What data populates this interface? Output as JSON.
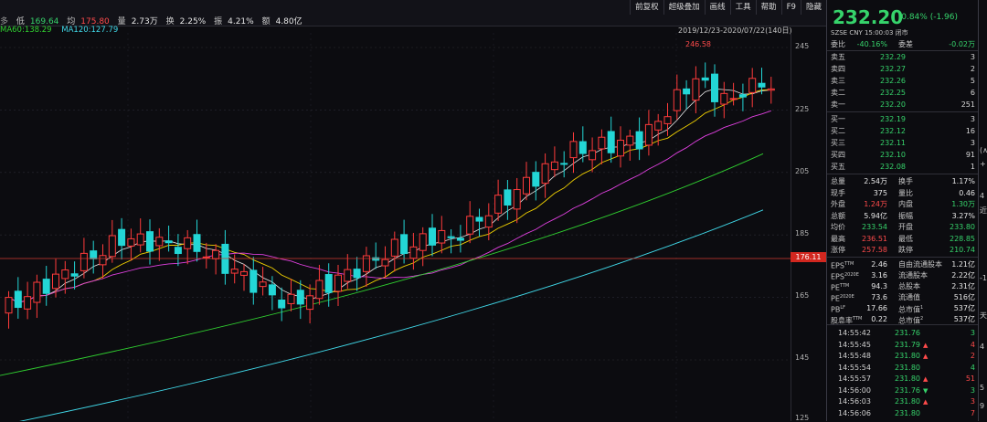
{
  "info": {
    "prev_fragment": "多",
    "low_label": "低",
    "low_value": "169.64",
    "avg_label": "均",
    "avg_value": "175.80",
    "volume_label": "量",
    "volume_value": "2.73万",
    "turnover_label": "换",
    "turnover_value": "2.25%",
    "amplitude_label": "振",
    "amplitude_value": "4.21%",
    "amount_label": "额",
    "amount_value": "4.80亿"
  },
  "ma": {
    "ma60": "MA60:138.29",
    "ma120": "MA120:127.79"
  },
  "toolbar": [
    "前复权",
    "超级叠加",
    "画线",
    "工具",
    "帮助",
    "F9",
    "隐藏"
  ],
  "chart_range": "2019/12/23-2020/07/22(140日)",
  "chart_data": {
    "type": "candlestick",
    "y_axis_ticks": [
      "245",
      "225",
      "205",
      "185",
      "165",
      "145",
      "125"
    ],
    "current_price_tag": "176.11",
    "high_marker": "246.58",
    "colors": {
      "up": "#ff3b3b",
      "down": "#23d6d6",
      "ma5": "#e8e8e8",
      "ma10": "#f0d000",
      "ma20": "#e040e0",
      "ma60": "#30d030",
      "ma120": "#40d8e8"
    }
  },
  "quote": {
    "price": "232.20",
    "change": "-0.84% (-1.96)",
    "ratio_label": "委比",
    "ratio_value": "-40.16%",
    "diff_label": "委差",
    "diff_value": "-0.02万",
    "asks": [
      {
        "label": "卖五",
        "price": "232.29",
        "vol": "3"
      },
      {
        "label": "卖四",
        "price": "232.27",
        "vol": "2"
      },
      {
        "label": "卖三",
        "price": "232.26",
        "vol": "5"
      },
      {
        "label": "卖二",
        "price": "232.25",
        "vol": "6"
      },
      {
        "label": "卖一",
        "price": "232.20",
        "vol": "251"
      }
    ],
    "bids": [
      {
        "label": "买一",
        "price": "232.19",
        "vol": "3"
      },
      {
        "label": "买二",
        "price": "232.12",
        "vol": "16"
      },
      {
        "label": "买三",
        "price": "232.11",
        "vol": "3"
      },
      {
        "label": "买四",
        "price": "232.10",
        "vol": "91"
      },
      {
        "label": "买五",
        "price": "232.08",
        "vol": "1"
      }
    ],
    "stats": [
      {
        "k1": "总量",
        "v1": "2.54万",
        "k2": "换手",
        "v2": "1.17%",
        "c1": "white",
        "c2": "white"
      },
      {
        "k1": "现手",
        "v1": "375",
        "k2": "量比",
        "v2": "0.46",
        "c1": "white",
        "c2": "white"
      },
      {
        "k1": "外盘",
        "v1": "1.24万",
        "k2": "内盘",
        "v2": "1.30万",
        "c1": "red",
        "c2": "green"
      },
      {
        "k1": "总额",
        "v1": "5.94亿",
        "k2": "振幅",
        "v2": "3.27%",
        "c1": "white",
        "c2": "white"
      },
      {
        "k1": "均价",
        "v1": "233.54",
        "k2": "开盘",
        "v2": "233.80",
        "c1": "green",
        "c2": "green"
      },
      {
        "k1": "最高",
        "v1": "236.51",
        "k2": "最低",
        "v2": "228.85",
        "c1": "red",
        "c2": "green"
      },
      {
        "k1": "涨停",
        "v1": "257.58",
        "k2": "跌停",
        "v2": "210.74",
        "c1": "red",
        "c2": "green"
      }
    ],
    "fundamentals": [
      {
        "k1": "EPS",
        "s1": "TTM",
        "v1": "2.46",
        "k2": "自由流通股本",
        "v2": "1.21亿"
      },
      {
        "k1": "EPS",
        "s1": "2020E",
        "v1": "3.16",
        "k2": "流通股本",
        "v2": "2.22亿"
      },
      {
        "k1": "PE",
        "s1": "TTM",
        "v1": "94.3",
        "k2": "总股本",
        "v2": "2.31亿"
      },
      {
        "k1": "PE",
        "s1": "2020E",
        "v1": "73.6",
        "k2": "流通值",
        "v2": "516亿"
      },
      {
        "k1": "PB",
        "s1": "LF",
        "v1": "17.66",
        "k2": "总市值",
        "s2": "1",
        "v2": "537亿"
      },
      {
        "k1": "股息率",
        "s1": "TTM",
        "v1": "0.22",
        "k2": "总市值",
        "s2": "2",
        "v2": "537亿"
      }
    ],
    "meta": "SZSE  CNY  15:00:03  闭市",
    "ticks": [
      {
        "time": "14:55:42",
        "price": "231.76",
        "dir": "",
        "vol": "3",
        "color": "green"
      },
      {
        "time": "14:55:45",
        "price": "231.79",
        "dir": "up",
        "vol": "4",
        "color": "red"
      },
      {
        "time": "14:55:48",
        "price": "231.80",
        "dir": "up",
        "vol": "2",
        "color": "red"
      },
      {
        "time": "14:55:54",
        "price": "231.80",
        "dir": "",
        "vol": "4",
        "color": "green"
      },
      {
        "time": "14:55:57",
        "price": "231.80",
        "dir": "up",
        "vol": "51",
        "color": "red"
      },
      {
        "time": "14:56:00",
        "price": "231.76",
        "dir": "down",
        "vol": "3",
        "color": "green"
      },
      {
        "time": "14:56:03",
        "price": "231.80",
        "dir": "up",
        "vol": "3",
        "color": "red"
      },
      {
        "time": "14:56:06",
        "price": "231.80",
        "dir": "",
        "vol": "7",
        "color": "red"
      }
    ]
  },
  "edge_glyphs": [
    "(∧",
    "+",
    "4",
    "近",
    "-1",
    "天",
    "4",
    "5",
    "9"
  ]
}
